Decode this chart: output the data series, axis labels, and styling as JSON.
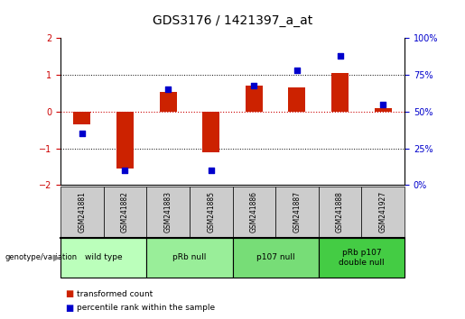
{
  "title": "GDS3176 / 1421397_a_at",
  "samples": [
    "GSM241881",
    "GSM241882",
    "GSM241883",
    "GSM241885",
    "GSM241886",
    "GSM241887",
    "GSM241888",
    "GSM241927"
  ],
  "red_bars": [
    -0.35,
    -1.55,
    0.55,
    -1.1,
    0.7,
    0.65,
    1.05,
    0.1
  ],
  "blue_dots": [
    35,
    10,
    65,
    10,
    68,
    78,
    88,
    55
  ],
  "ylim_left": [
    -2,
    2
  ],
  "ylim_right": [
    0,
    100
  ],
  "left_yticks": [
    -2,
    -1,
    0,
    1,
    2
  ],
  "right_yticks": [
    0,
    25,
    50,
    75,
    100
  ],
  "right_yticklabels": [
    "0%",
    "25%",
    "50%",
    "75%",
    "100%"
  ],
  "groups": [
    {
      "label": "wild type",
      "samples": [
        "GSM241881",
        "GSM241882"
      ],
      "color": "#bbffbb"
    },
    {
      "label": "pRb null",
      "samples": [
        "GSM241883",
        "GSM241885"
      ],
      "color": "#99ee99"
    },
    {
      "label": "p107 null",
      "samples": [
        "GSM241886",
        "GSM241887"
      ],
      "color": "#77dd77"
    },
    {
      "label": "pRb p107\ndouble null",
      "samples": [
        "GSM241888",
        "GSM241927"
      ],
      "color": "#44cc44"
    }
  ],
  "bar_color": "#cc2200",
  "dot_color": "#0000cc",
  "red_line_color": "#cc0000",
  "title_fontsize": 10,
  "axis_label_color_left": "#cc0000",
  "axis_label_color_right": "#0000cc",
  "background_color": "#ffffff",
  "plot_bg_color": "#ffffff",
  "bar_width": 0.4,
  "dot_size": 18,
  "sample_box_color": "#cccccc",
  "group_border_color": "#000000"
}
